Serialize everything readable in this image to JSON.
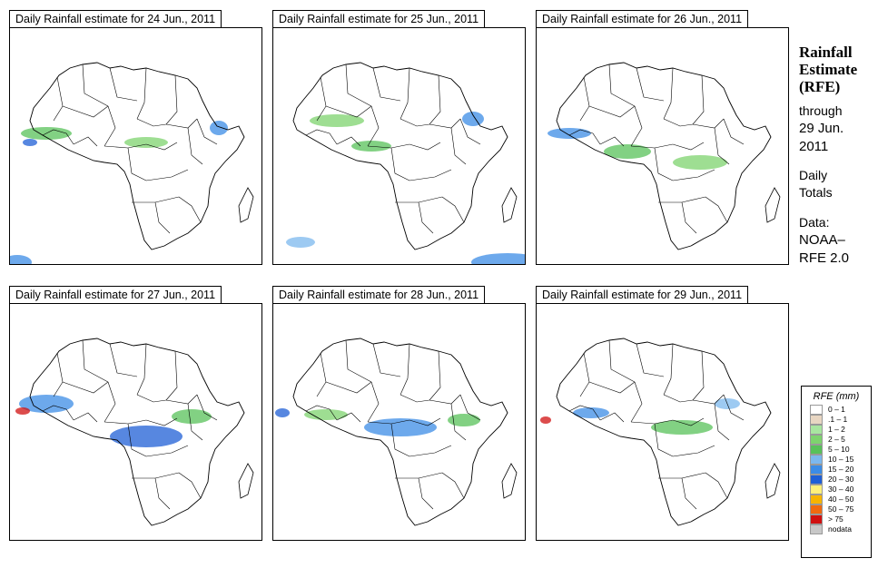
{
  "panels": [
    {
      "title": "Daily Rainfall estimate for  24 Jun., 2011"
    },
    {
      "title": "Daily Rainfall estimate for  25 Jun., 2011"
    },
    {
      "title": "Daily Rainfall estimate for  26 Jun., 2011"
    },
    {
      "title": "Daily Rainfall estimate for  27 Jun., 2011"
    },
    {
      "title": "Daily Rainfall estimate for  28 Jun., 2011"
    },
    {
      "title": "Daily Rainfall estimate for  29 Jun., 2011"
    }
  ],
  "side": {
    "heading1": "Rainfall",
    "heading2": "Estimate",
    "heading3": "(RFE)",
    "through": "through",
    "through_date1": "29 Jun.",
    "through_date2": "2011",
    "daily": "Daily",
    "totals": "Totals",
    "data_label": "Data:",
    "source1": "NOAA–",
    "source2": "RFE 2.0"
  },
  "legend": {
    "title": "RFE (mm)",
    "classes": [
      {
        "label": "0 – 1",
        "color": "#ffffff"
      },
      {
        "label": ".1 – 1",
        "color": "#e8d6c2"
      },
      {
        "label": "1 – 2",
        "color": "#a8e6a0"
      },
      {
        "label": "2 – 5",
        "color": "#7ed36e"
      },
      {
        "label": "5 – 10",
        "color": "#58c15a"
      },
      {
        "label": "10 – 15",
        "color": "#7cb8ee"
      },
      {
        "label": "15 – 20",
        "color": "#3c8ce6"
      },
      {
        "label": "20 – 30",
        "color": "#1f5fd6"
      },
      {
        "label": "30 – 40",
        "color": "#fff07a"
      },
      {
        "label": "40 – 50",
        "color": "#f7b500"
      },
      {
        "label": "50 – 75",
        "color": "#f06a10"
      },
      {
        "label": "> 75",
        "color": "#d01010"
      },
      {
        "label": "nodata",
        "color": "#c8c8c8"
      }
    ]
  }
}
